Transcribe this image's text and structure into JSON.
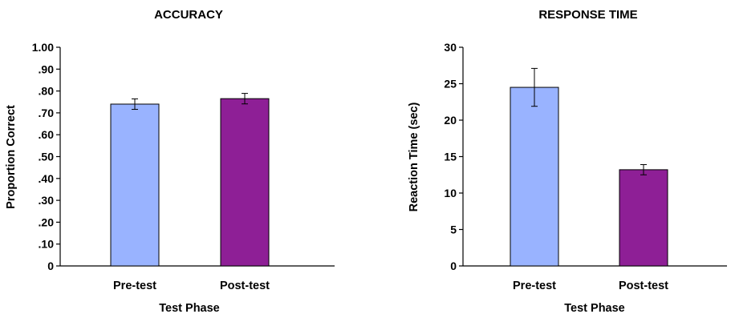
{
  "chart_data": [
    {
      "type": "bar",
      "title": "ACCURACY",
      "xlabel": "Test Phase",
      "ylabel": "Proportion Correct",
      "categories": [
        "Pre-test",
        "Post-test"
      ],
      "values": [
        0.74,
        0.765
      ],
      "error": [
        0.024,
        0.024
      ],
      "ylim": [
        0,
        1.0
      ],
      "yticks": [
        0,
        0.1,
        0.2,
        0.3,
        0.4,
        0.5,
        0.6,
        0.7,
        0.8,
        0.9,
        1.0
      ],
      "ytick_labels": [
        "0",
        ".10",
        ".20",
        ".30",
        ".40",
        ".50",
        ".60",
        ".70",
        ".80",
        ".90",
        "1.00"
      ],
      "grid": false,
      "colors": [
        "#99b3ff",
        "#8e1f96"
      ]
    },
    {
      "type": "bar",
      "title": "RESPONSE TIME",
      "xlabel": "Test Phase",
      "ylabel": "Reaction Time (sec)",
      "categories": [
        "Pre-test",
        "Post-test"
      ],
      "values": [
        24.5,
        13.2
      ],
      "error": [
        2.6,
        0.7
      ],
      "ylim": [
        0,
        30
      ],
      "yticks": [
        0,
        5,
        10,
        15,
        20,
        25,
        30
      ],
      "ytick_labels": [
        "0",
        "5",
        "10",
        "15",
        "20",
        "25",
        "30"
      ],
      "grid": false,
      "colors": [
        "#99b3ff",
        "#8e1f96"
      ]
    }
  ]
}
